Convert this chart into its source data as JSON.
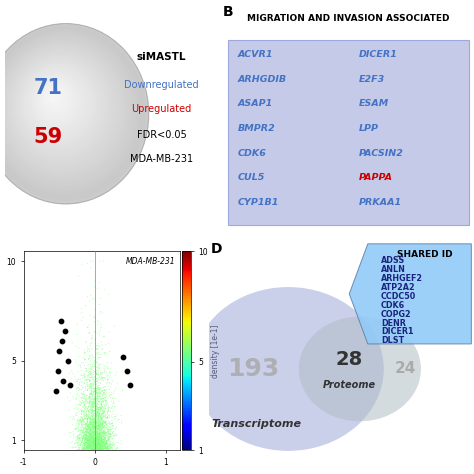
{
  "panel_A": {
    "number_down": "71",
    "number_up": "59",
    "label_simastl": "siMASTL",
    "label_down": "Downregulated",
    "label_up": "Upregulated",
    "label_fdr": "FDR<0.05",
    "label_cell": "MDA-MB-231",
    "color_down": "#4472C4",
    "color_up": "#CC0000"
  },
  "panel_B": {
    "title": "MIGRATION AND INVASION ASSOCIATED",
    "col1": [
      "ACVR1",
      "ARHGDIB",
      "ASAP1",
      "BMPR2",
      "CDK6",
      "CUL5",
      "CYP1B1"
    ],
    "col2": [
      "DICER1",
      "E2F3",
      "ESAM",
      "LPP",
      "PACSIN2",
      "PAPPA",
      "PRKAA1"
    ],
    "gene_color": "#4472C4",
    "highlight_gene": "PAPPA",
    "highlight_color": "#CC0000",
    "box_color": "#C5CAE9",
    "title_color": "#000000"
  },
  "panel_D": {
    "circle1_label": "Transcriptome",
    "circle1_num": "193",
    "circle2_label": "Proteome",
    "circle2_num": "28",
    "overlap_num": "24",
    "shared_title": "SHARED ID",
    "shared_genes": [
      "ADSS",
      "ANLN",
      "ARHGEF2",
      "ATP2A2",
      "CCDC50",
      "CDK6",
      "COPG2",
      "DENR",
      "DICER1",
      "DLST"
    ],
    "circle1_color": "#9FA8DA",
    "circle2_color": "#90A4AE",
    "box_color": "#90CAF9"
  }
}
